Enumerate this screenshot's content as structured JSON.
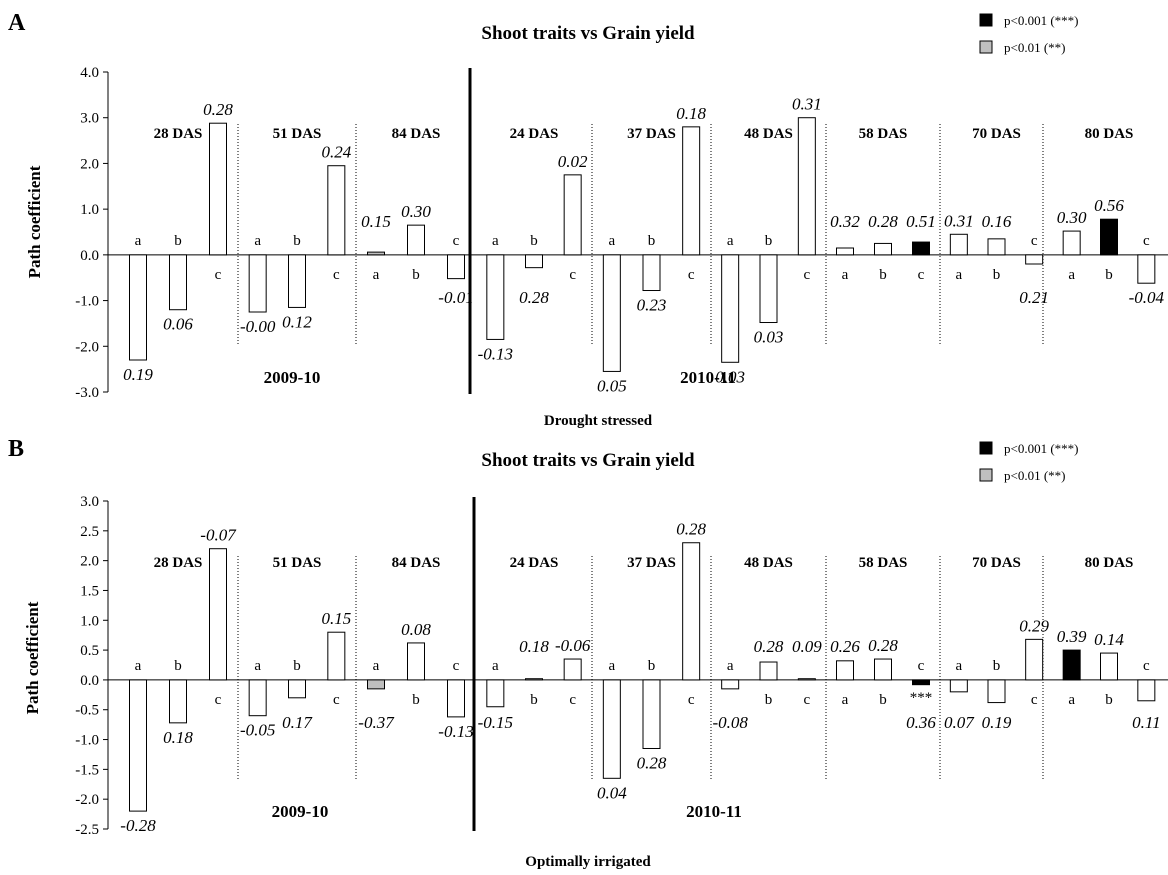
{
  "chart_data": [
    {
      "panel": "A",
      "type": "bar",
      "title": "Shoot traits  vs Grain yield",
      "xlabel": "Drought stressed",
      "ylabel": "Path coefficient",
      "ylim": [
        -3.0,
        4.0
      ],
      "yticks": [
        "4.0",
        "3.0",
        "2.0",
        "1.0",
        "0.0",
        "-1.0",
        "-2.0",
        "-3.0"
      ],
      "legend": [
        {
          "label": "p<0.001 (***)",
          "color": "#000000"
        },
        {
          "label": "p<0.01 (**)",
          "color": "#bfbfbf"
        }
      ],
      "seasons": [
        "2009-10",
        "2010-11"
      ],
      "groups": [
        {
          "name": "28 DAS",
          "bars": [
            {
              "trait": "a",
              "value": -2.3,
              "coef": "0.19",
              "fill": "#ffffff"
            },
            {
              "trait": "b",
              "value": -1.2,
              "coef": "0.06",
              "fill": "#ffffff"
            },
            {
              "trait": "c",
              "value": 2.88,
              "coef": "0.28",
              "fill": "#ffffff"
            }
          ]
        },
        {
          "name": "51 DAS",
          "bars": [
            {
              "trait": "a",
              "value": -1.25,
              "coef": "-0.00",
              "fill": "#ffffff"
            },
            {
              "trait": "b",
              "value": -1.15,
              "coef": "0.12",
              "fill": "#ffffff"
            },
            {
              "trait": "c",
              "value": 1.95,
              "coef": "0.24",
              "fill": "#ffffff"
            }
          ]
        },
        {
          "name": "84 DAS",
          "bars": [
            {
              "trait": "a",
              "value": 0.06,
              "coef": "0.15",
              "fill": "#bfbfbf"
            },
            {
              "trait": "b",
              "value": 0.65,
              "coef": "0.30",
              "fill": "#ffffff"
            },
            {
              "trait": "c",
              "value": -0.52,
              "coef": "-0.01",
              "fill": "#ffffff"
            }
          ]
        },
        {
          "name": "24 DAS",
          "bars": [
            {
              "trait": "a",
              "value": -1.85,
              "coef": "-0.13",
              "fill": "#ffffff"
            },
            {
              "trait": "b",
              "value": -0.28,
              "coef": "0.28",
              "fill": "#ffffff"
            },
            {
              "trait": "c",
              "value": 1.75,
              "coef": "0.02",
              "fill": "#ffffff"
            }
          ]
        },
        {
          "name": "37 DAS",
          "bars": [
            {
              "trait": "a",
              "value": -2.55,
              "coef": "0.05",
              "fill": "#ffffff"
            },
            {
              "trait": "b",
              "value": -0.78,
              "coef": "0.23",
              "fill": "#ffffff"
            },
            {
              "trait": "c",
              "value": 2.8,
              "coef": "0.18",
              "fill": "#ffffff"
            }
          ]
        },
        {
          "name": "48 DAS",
          "bars": [
            {
              "trait": "a",
              "value": -2.35,
              "coef": "0.03",
              "fill": "#ffffff"
            },
            {
              "trait": "b",
              "value": -1.48,
              "coef": "0.03",
              "fill": "#ffffff"
            },
            {
              "trait": "c",
              "value": 3.0,
              "coef": "0.31",
              "fill": "#ffffff"
            }
          ]
        },
        {
          "name": "58 DAS",
          "bars": [
            {
              "trait": "a",
              "value": 0.15,
              "coef": "0.32",
              "fill": "#ffffff"
            },
            {
              "trait": "b",
              "value": 0.25,
              "coef": "0.28",
              "fill": "#ffffff"
            },
            {
              "trait": "c",
              "value": 0.28,
              "coef": "0.51",
              "fill": "#000000"
            }
          ]
        },
        {
          "name": "70 DAS",
          "bars": [
            {
              "trait": "a",
              "value": 0.45,
              "coef": "0.31",
              "fill": "#ffffff"
            },
            {
              "trait": "b",
              "value": 0.35,
              "coef": "0.16",
              "fill": "#ffffff"
            },
            {
              "trait": "c",
              "value": -0.2,
              "coef": "0.21",
              "fill": "#ffffff"
            }
          ]
        },
        {
          "name": "80 DAS",
          "bars": [
            {
              "trait": "a",
              "value": 0.52,
              "coef": "0.30",
              "fill": "#ffffff"
            },
            {
              "trait": "b",
              "value": 0.78,
              "coef": "0.56",
              "fill": "#000000"
            },
            {
              "trait": "c",
              "value": -0.62,
              "coef": "-0.04",
              "fill": "#ffffff"
            }
          ]
        }
      ]
    },
    {
      "panel": "B",
      "type": "bar",
      "title": "Shoot traits  vs Grain yield",
      "xlabel": "Optimally irrigated",
      "ylabel": "Path coefficient",
      "ylim": [
        -2.5,
        3.0
      ],
      "yticks": [
        "3.0",
        "2.5",
        "2.0",
        "1.5",
        "1.0",
        "0.5",
        "0.0",
        "-0.5",
        "-1.0",
        "-1.5",
        "-2.0",
        "-2.5"
      ],
      "legend": [
        {
          "label": "p<0.001 (***)",
          "color": "#000000"
        },
        {
          "label": "p<0.01 (**)",
          "color": "#bfbfbf"
        }
      ],
      "seasons": [
        "2009-10",
        "2010-11"
      ],
      "annotations": [
        "***"
      ],
      "groups": [
        {
          "name": "28 DAS",
          "bars": [
            {
              "trait": "a",
              "value": -2.2,
              "coef": "-0.28",
              "fill": "#ffffff"
            },
            {
              "trait": "b",
              "value": -0.72,
              "coef": "0.18",
              "fill": "#ffffff"
            },
            {
              "trait": "c",
              "value": 2.2,
              "coef": "-0.07",
              "fill": "#ffffff"
            }
          ]
        },
        {
          "name": "51 DAS",
          "bars": [
            {
              "trait": "a",
              "value": -0.6,
              "coef": "-0.05",
              "fill": "#ffffff"
            },
            {
              "trait": "b",
              "value": -0.3,
              "coef": "0.17",
              "fill": "#ffffff"
            },
            {
              "trait": "c",
              "value": 0.8,
              "coef": "0.15",
              "fill": "#ffffff"
            }
          ]
        },
        {
          "name": "84 DAS",
          "bars": [
            {
              "trait": "a",
              "value": -0.15,
              "coef": "-0.37",
              "fill": "#bfbfbf"
            },
            {
              "trait": "b",
              "value": 0.62,
              "coef": "0.08",
              "fill": "#ffffff"
            },
            {
              "trait": "c",
              "value": -0.62,
              "coef": "-0.13",
              "fill": "#ffffff"
            }
          ]
        },
        {
          "name": "24 DAS",
          "bars": [
            {
              "trait": "a",
              "value": -0.45,
              "coef": "-0.15",
              "fill": "#ffffff"
            },
            {
              "trait": "b",
              "value": 0.02,
              "coef": "0.18",
              "fill": "#ffffff"
            },
            {
              "trait": "c",
              "value": 0.35,
              "coef": "-0.06",
              "fill": "#ffffff"
            }
          ]
        },
        {
          "name": "37 DAS",
          "bars": [
            {
              "trait": "a",
              "value": -1.65,
              "coef": "0.04",
              "fill": "#ffffff"
            },
            {
              "trait": "b",
              "value": -1.15,
              "coef": "0.28",
              "fill": "#ffffff"
            },
            {
              "trait": "c",
              "value": 2.3,
              "coef": "0.28",
              "fill": "#ffffff"
            }
          ]
        },
        {
          "name": "48 DAS",
          "bars": [
            {
              "trait": "a",
              "value": -0.15,
              "coef": "-0.08",
              "fill": "#ffffff"
            },
            {
              "trait": "b",
              "value": 0.3,
              "coef": "0.28",
              "fill": "#ffffff"
            },
            {
              "trait": "c",
              "value": 0.02,
              "coef": "0.09",
              "fill": "#ffffff"
            }
          ]
        },
        {
          "name": "58 DAS",
          "bars": [
            {
              "trait": "a",
              "value": 0.32,
              "coef": "0.26",
              "fill": "#ffffff"
            },
            {
              "trait": "b",
              "value": 0.35,
              "coef": "0.28",
              "fill": "#ffffff"
            },
            {
              "trait": "c",
              "value": -0.08,
              "coef": "0.36",
              "fill": "#000000"
            }
          ]
        },
        {
          "name": "70 DAS",
          "bars": [
            {
              "trait": "a",
              "value": -0.2,
              "coef": "0.07",
              "fill": "#ffffff"
            },
            {
              "trait": "b",
              "value": -0.38,
              "coef": "0.19",
              "fill": "#ffffff"
            },
            {
              "trait": "c",
              "value": 0.68,
              "coef": "0.29",
              "fill": "#ffffff"
            }
          ]
        },
        {
          "name": "80 DAS",
          "bars": [
            {
              "trait": "a",
              "value": 0.5,
              "coef": "0.39",
              "fill": "#000000"
            },
            {
              "trait": "b",
              "value": 0.45,
              "coef": "0.14",
              "fill": "#ffffff"
            },
            {
              "trait": "c",
              "value": -0.35,
              "coef": "0.11",
              "fill": "#ffffff"
            }
          ]
        }
      ]
    }
  ]
}
